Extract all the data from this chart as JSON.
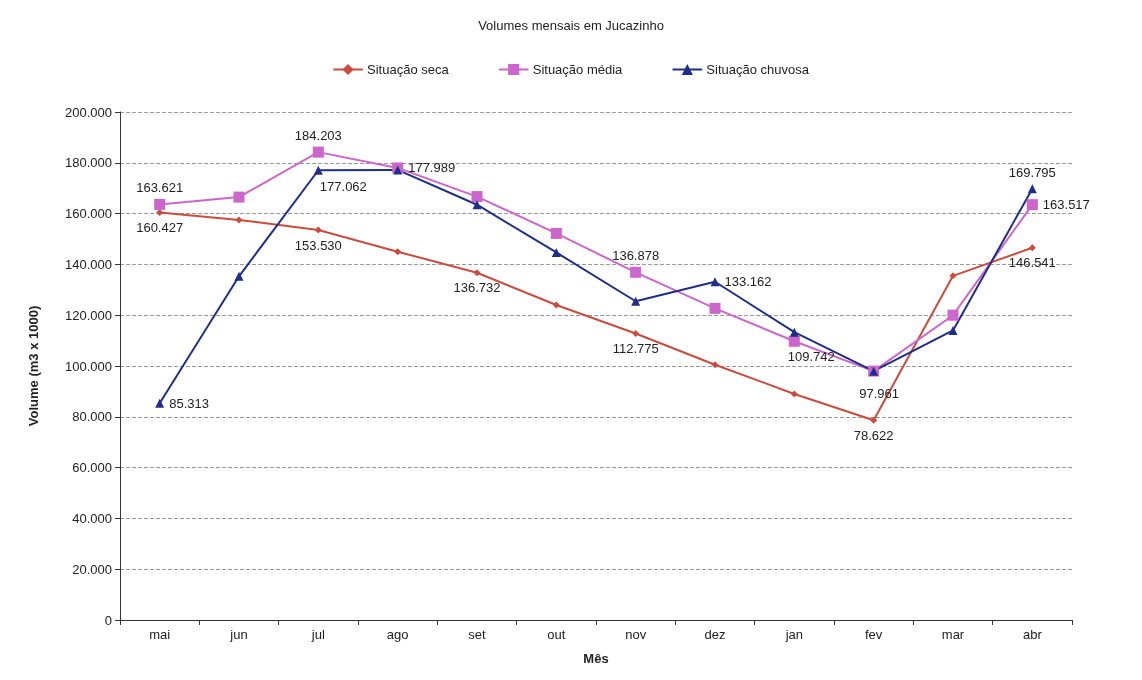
{
  "chart_data": {
    "type": "line",
    "title": "Volumes mensais em Jucazinho",
    "xlabel": "Mês",
    "ylabel": "Volume (m3 x 1000)",
    "categories": [
      "mai",
      "jun",
      "jul",
      "ago",
      "set",
      "out",
      "nov",
      "dez",
      "jan",
      "fev",
      "mar",
      "abr"
    ],
    "ylim": [
      0,
      200000
    ],
    "yticks": [
      {
        "value": 0,
        "label": "0"
      },
      {
        "value": 20000,
        "label": "20.000"
      },
      {
        "value": 40000,
        "label": "40.000"
      },
      {
        "value": 60000,
        "label": "60.000"
      },
      {
        "value": 80000,
        "label": "80.000"
      },
      {
        "value": 100000,
        "label": "100.000"
      },
      {
        "value": 120000,
        "label": "120.000"
      },
      {
        "value": 140000,
        "label": "140.000"
      },
      {
        "value": 160000,
        "label": "160.000"
      },
      {
        "value": 180000,
        "label": "180.000"
      },
      {
        "value": 200000,
        "label": "200.000"
      }
    ],
    "grid": "y",
    "legend": "top",
    "line_style": "solid",
    "series": [
      {
        "name": "Situação seca",
        "color": "#cc4b3c",
        "marker": "diamond",
        "values": [
          160427,
          157500,
          153530,
          145000,
          136732,
          124000,
          112775,
          100500,
          89000,
          78622,
          135500,
          146541
        ],
        "value_labels": [
          "160.427",
          null,
          "153.530",
          null,
          "136.732",
          null,
          "112.775",
          null,
          null,
          "78.622",
          null,
          "146.541"
        ]
      },
      {
        "name": "Situação média",
        "color": "#cc66cc",
        "marker": "square",
        "values": [
          163621,
          166500,
          184203,
          177989,
          166700,
          152200,
          136878,
          122700,
          109742,
          98000,
          120000,
          163517
        ],
        "value_labels": [
          "163.621",
          null,
          "184.203",
          "177.989",
          null,
          null,
          "136.878",
          null,
          "109.742",
          null,
          null,
          "163.517"
        ]
      },
      {
        "name": "Situação chuvosa",
        "color": "#1f2e8a",
        "marker": "triangle",
        "values": [
          85313,
          135300,
          177062,
          177200,
          163500,
          144700,
          125500,
          133162,
          113300,
          97961,
          114000,
          169795
        ],
        "value_labels": [
          "85.313",
          null,
          "177.062",
          null,
          null,
          null,
          null,
          "133.162",
          null,
          "97.961",
          null,
          "169.795"
        ]
      }
    ]
  }
}
